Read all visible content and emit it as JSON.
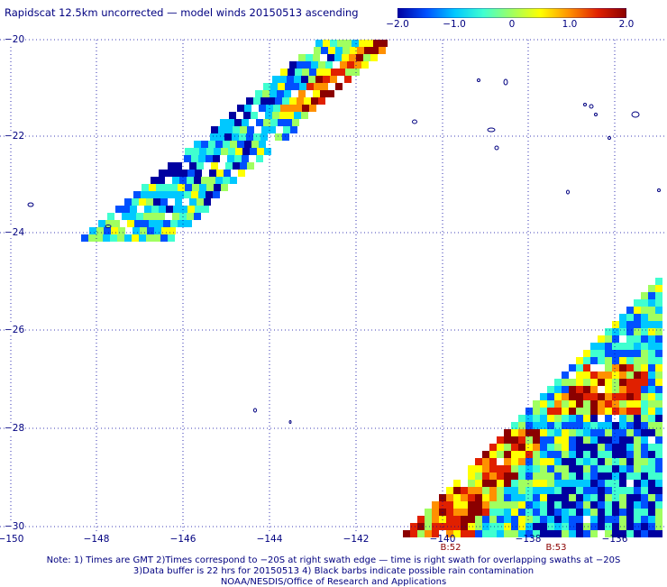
{
  "title": "Rapidscat 12.5km uncorrected — model winds 20150513 ascending",
  "colorbar": {
    "ticks": [
      "−2.0",
      "−1.0",
      "0",
      "1.0",
      "2.0"
    ],
    "colors": [
      "#0000a0",
      "#0050ff",
      "#00c8ff",
      "#40ffd0",
      "#a0ff60",
      "#ffff00",
      "#ff9000",
      "#e02000",
      "#8b0000"
    ]
  },
  "axes": {
    "lat_ticks": [
      "−20",
      "−22",
      "−24",
      "−26",
      "−28",
      "−30"
    ],
    "lon_ticks": [
      "−150",
      "−148",
      "−146",
      "−144",
      "−142",
      "−140",
      "−138",
      "−136"
    ],
    "lat_range": [
      -30,
      -20
    ],
    "lon_range": [
      -150,
      -135.2
    ],
    "gridlines": "dotted"
  },
  "time_labels": [
    {
      "text": "B:52",
      "lon": -140
    },
    {
      "text": "B:53",
      "lon": -138
    }
  ],
  "notes": [
    "Note: 1) Times are GMT 2)Times correspond to −20S at right swath edge — time is right swath for overlapping swaths at −20S",
    "3)Data buffer is 22 hrs for 20150513 4) Black barbs indicate possible rain contamination",
    "NOAA/NESDIS/Office of Research and Applications"
  ],
  "colors": {
    "text": "#000080",
    "coastline": "#000080",
    "grid": "#0000a0",
    "time_label": "#8b0000"
  }
}
